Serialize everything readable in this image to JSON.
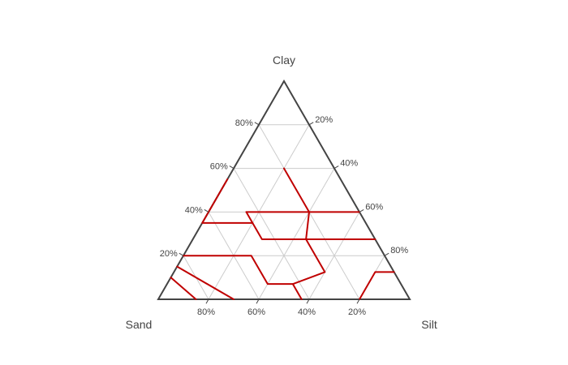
{
  "chart_data": {
    "type": "ternary",
    "axes": {
      "a": {
        "title": "Clay",
        "ticks": [
          20,
          40,
          60,
          80
        ],
        "tick_labels": [
          "20%",
          "40%",
          "60%",
          "80%"
        ]
      },
      "b": {
        "title": "Sand",
        "ticks": [
          20,
          40,
          60,
          80
        ],
        "tick_labels": [
          "20%",
          "40%",
          "60%",
          "80%"
        ]
      },
      "c": {
        "title": "Silt",
        "ticks": [
          20,
          40,
          60,
          80
        ],
        "tick_labels": [
          "20%",
          "40%",
          "60%",
          "80%"
        ]
      }
    },
    "grid": true,
    "gridlines_at": [
      20,
      40,
      60,
      80
    ],
    "boundary_color": "#c00000",
    "frame_color": "#444444",
    "grid_color": "#cccccc",
    "boundaries": [
      {
        "points": [
          [
            40,
            45,
            15
          ],
          [
            40,
            20,
            40
          ]
        ]
      },
      {
        "points": [
          [
            40,
            20,
            40
          ],
          [
            60,
            20,
            20
          ]
        ]
      },
      {
        "points": [
          [
            40,
            20,
            40
          ],
          [
            40,
            0,
            60
          ]
        ]
      },
      {
        "points": [
          [
            55,
            45,
            0
          ],
          [
            35,
            65,
            0
          ],
          [
            35,
            45,
            20
          ]
        ]
      },
      {
        "points": [
          [
            35,
            45,
            20
          ],
          [
            40,
            45,
            15
          ]
        ]
      },
      {
        "points": [
          [
            35,
            45,
            20
          ],
          [
            27.5,
            45,
            27.5
          ],
          [
            27.5,
            27.5,
            45
          ],
          [
            27.5,
            0,
            72.5
          ]
        ]
      },
      {
        "points": [
          [
            27.5,
            27.5,
            45
          ],
          [
            40,
            20,
            40
          ]
        ]
      },
      {
        "points": [
          [
            20,
            80,
            0
          ],
          [
            20,
            53,
            27
          ],
          [
            7,
            53,
            40
          ],
          [
            7,
            43,
            50
          ],
          [
            0,
            43,
            57
          ]
        ]
      },
      {
        "points": [
          [
            7,
            43,
            50
          ],
          [
            12.5,
            27.5,
            60
          ],
          [
            27.5,
            27.5,
            45
          ]
        ]
      },
      {
        "points": [
          [
            15,
            85,
            0
          ],
          [
            0,
            70,
            30
          ]
        ]
      },
      {
        "points": [
          [
            10,
            90,
            0
          ],
          [
            0,
            85,
            15
          ]
        ]
      },
      {
        "points": [
          [
            12.5,
            0,
            87.5
          ],
          [
            12.5,
            7.5,
            80
          ],
          [
            0,
            20,
            80
          ]
        ]
      }
    ]
  }
}
